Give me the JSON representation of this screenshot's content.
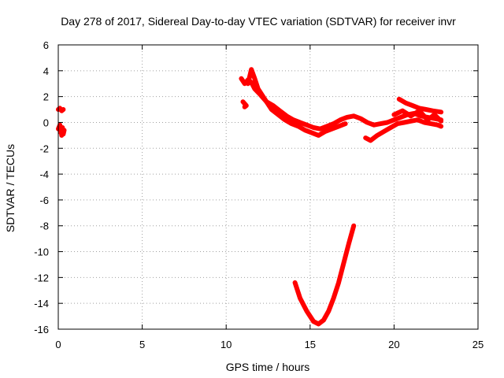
{
  "chart_data": {
    "type": "line",
    "title": "Day 278 of 2017, Sidereal Day-to-day VTEC variation (SDTVAR) for receiver invr",
    "xlabel": "GPS time / hours",
    "ylabel": "SDTVAR / TECUs",
    "xlim": [
      0,
      25
    ],
    "ylim": [
      -16,
      6
    ],
    "xticks": [
      0,
      5,
      10,
      15,
      20,
      25
    ],
    "yticks": [
      -16,
      -14,
      -12,
      -10,
      -8,
      -6,
      -4,
      -2,
      0,
      2,
      4,
      6
    ],
    "grid": true,
    "series_color": "#ff0000",
    "series": [
      {
        "segments": [
          [
            [
              0.0,
              1.0
            ],
            [
              0.1,
              1.1
            ],
            [
              0.2,
              0.9
            ],
            [
              0.3,
              1.0
            ]
          ],
          [
            [
              0.0,
              -0.5
            ],
            [
              0.1,
              -0.2
            ],
            [
              0.15,
              -0.8
            ],
            [
              0.25,
              -0.4
            ],
            [
              0.3,
              -0.9
            ],
            [
              0.35,
              -0.6
            ],
            [
              0.2,
              -1.0
            ]
          ],
          [
            [
              10.9,
              3.4
            ],
            [
              11.1,
              3.0
            ],
            [
              11.3,
              3.3
            ],
            [
              11.5,
              3.1
            ],
            [
              11.7,
              2.6
            ],
            [
              12.0,
              2.2
            ],
            [
              12.4,
              1.6
            ],
            [
              12.8,
              1.3
            ],
            [
              13.2,
              0.9
            ],
            [
              13.6,
              0.5
            ],
            [
              14.0,
              0.2
            ],
            [
              14.4,
              0.0
            ],
            [
              14.8,
              -0.2
            ],
            [
              15.2,
              -0.4
            ],
            [
              15.6,
              -0.5
            ],
            [
              16.0,
              -0.3
            ],
            [
              16.4,
              -0.1
            ],
            [
              16.8,
              0.2
            ],
            [
              17.2,
              0.4
            ],
            [
              17.6,
              0.5
            ],
            [
              18.0,
              0.3
            ],
            [
              18.4,
              0.0
            ],
            [
              18.8,
              -0.2
            ],
            [
              19.2,
              -0.1
            ],
            [
              19.6,
              0.0
            ],
            [
              20.0,
              0.2
            ],
            [
              20.4,
              0.4
            ],
            [
              20.8,
              0.6
            ],
            [
              21.2,
              0.7
            ],
            [
              21.6,
              0.5
            ],
            [
              22.0,
              0.4
            ],
            [
              22.4,
              0.3
            ],
            [
              22.8,
              0.2
            ]
          ],
          [
            [
              11.3,
              3.0
            ],
            [
              11.5,
              4.1
            ],
            [
              11.7,
              3.4
            ],
            [
              11.9,
              2.6
            ],
            [
              12.3,
              1.8
            ],
            [
              12.7,
              1.0
            ],
            [
              13.1,
              0.6
            ],
            [
              13.5,
              0.2
            ],
            [
              13.9,
              -0.1
            ],
            [
              14.3,
              -0.3
            ],
            [
              14.7,
              -0.6
            ],
            [
              15.1,
              -0.8
            ],
            [
              15.5,
              -1.0
            ],
            [
              15.9,
              -0.7
            ],
            [
              16.3,
              -0.5
            ],
            [
              16.7,
              -0.3
            ],
            [
              17.1,
              -0.1
            ]
          ],
          [
            [
              11.0,
              1.6
            ],
            [
              11.2,
              1.3
            ],
            [
              11.1,
              1.2
            ]
          ],
          [
            [
              18.3,
              -1.2
            ],
            [
              18.6,
              -1.4
            ],
            [
              19.0,
              -1.0
            ],
            [
              19.4,
              -0.7
            ],
            [
              19.8,
              -0.4
            ],
            [
              20.2,
              -0.1
            ],
            [
              20.6,
              0.0
            ],
            [
              21.0,
              0.1
            ],
            [
              21.4,
              0.2
            ],
            [
              21.8,
              0.0
            ],
            [
              22.2,
              -0.1
            ],
            [
              22.6,
              -0.2
            ],
            [
              22.8,
              -0.3
            ]
          ],
          [
            [
              20.3,
              1.8
            ],
            [
              20.7,
              1.5
            ],
            [
              21.1,
              1.3
            ],
            [
              21.5,
              1.1
            ],
            [
              21.9,
              1.0
            ],
            [
              22.3,
              0.9
            ],
            [
              22.8,
              0.8
            ]
          ],
          [
            [
              20.0,
              0.6
            ],
            [
              20.5,
              0.9
            ],
            [
              21.0,
              0.5
            ],
            [
              21.5,
              0.9
            ],
            [
              22.0,
              0.2
            ],
            [
              22.4,
              0.6
            ],
            [
              22.8,
              0.1
            ]
          ],
          [
            [
              14.1,
              -12.4
            ],
            [
              14.4,
              -13.6
            ],
            [
              14.8,
              -14.6
            ],
            [
              15.2,
              -15.4
            ],
            [
              15.5,
              -15.6
            ],
            [
              15.8,
              -15.3
            ],
            [
              16.1,
              -14.6
            ],
            [
              16.4,
              -13.6
            ],
            [
              16.7,
              -12.4
            ],
            [
              17.0,
              -10.9
            ],
            [
              17.3,
              -9.4
            ],
            [
              17.6,
              -8.0
            ]
          ]
        ]
      }
    ]
  }
}
